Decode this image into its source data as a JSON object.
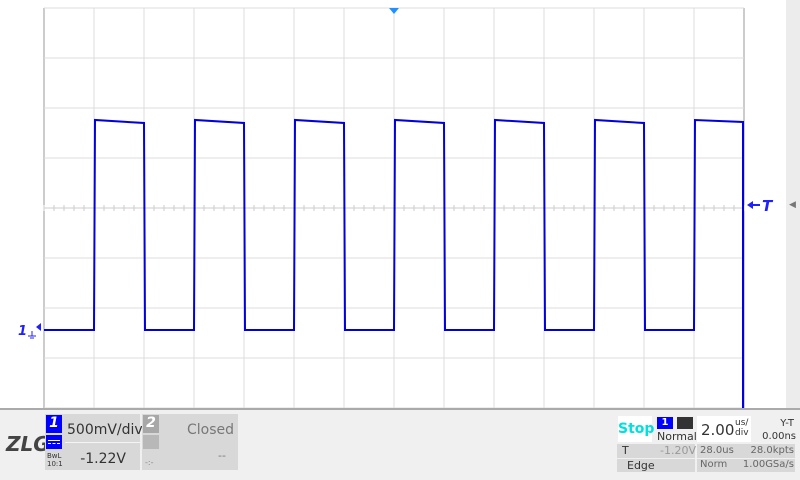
{
  "display": {
    "vdiv_count": 8,
    "hdiv_count": 14,
    "trace_color": "#0000e0",
    "grid_color": "#dcdcdc"
  },
  "chart_data": {
    "type": "line",
    "series": [
      {
        "name": "1",
        "waveform": "square",
        "low_v": -1.22,
        "high_v": 0.88,
        "period_us": 4.0,
        "duty": 0.5
      }
    ],
    "x_scale": "2.00us/div",
    "y_scale": "500mV/div"
  },
  "markers": {
    "channel1": "1",
    "trigger": "T"
  },
  "logo": {
    "text": "ZLG",
    "reg": "®"
  },
  "ch1": {
    "num": "1",
    "scale": "500mV/div",
    "offset": "-1.22V",
    "bw": "BwL",
    "probe": "10:1"
  },
  "ch2": {
    "num": "2",
    "status": "Closed",
    "offset": "--",
    "coupling": "-:-"
  },
  "run": {
    "state": "Stop"
  },
  "trigger": {
    "source": "1",
    "mode": "Normal",
    "type_label": "T",
    "type": "Edge",
    "level": "-1.20V",
    "sweep": "Norm"
  },
  "timebase": {
    "value": "2.00",
    "unit_top": "us/",
    "unit_bottom": "div",
    "mode": "Y-T",
    "delay": "0.00ns",
    "window": "28.0us",
    "points": "28.0kpts",
    "rate": "1.00GSa/s"
  }
}
